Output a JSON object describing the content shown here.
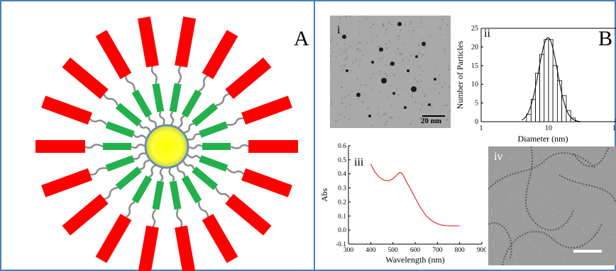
{
  "panel_a": {
    "label": "A"
  },
  "panel_b": {
    "label": "B",
    "subpanels": {
      "i": {
        "label": "i",
        "scale_bar": "20 nm"
      },
      "ii": {
        "label": "ii"
      },
      "iii": {
        "label": "iii"
      },
      "iv": {
        "label": "iv"
      }
    }
  },
  "colors": {
    "frame": "#4a7fb5",
    "ligand_red": "#ff0000",
    "linker_green": "#22b14c",
    "core_yellow": "#ffff33",
    "core_ring": "#6a8fb0",
    "spectrum_line": "#e03030"
  },
  "chart_data": [
    {
      "id": "ii",
      "type": "bar",
      "title": "",
      "xlabel": "Diameter (nm)",
      "ylabel": "Number of Particles",
      "x_scale": "log",
      "xlim": [
        1,
        100
      ],
      "ylim": [
        0,
        25
      ],
      "xticks": [
        "1",
        "10",
        "10"
      ],
      "yticks": [
        "0",
        "5",
        "10",
        "15",
        "20",
        "25"
      ],
      "bin_edges": [
        4.7,
        5.5,
        6.4,
        7.4,
        8.6,
        10.0,
        11.6,
        13.5,
        15.7,
        18.3,
        21.3,
        24.8
      ],
      "values": [
        2,
        6,
        13,
        18,
        22,
        22,
        15,
        11,
        7,
        3,
        1
      ],
      "fit_curve": {
        "type": "lognormal",
        "peak_x": 9.8,
        "peak_y": 22.5
      }
    },
    {
      "id": "iii",
      "type": "line",
      "title": "",
      "xlabel": "Wavelength (nm)",
      "ylabel": "Abs",
      "xlim": [
        300,
        900
      ],
      "ylim": [
        -0.1,
        0.6
      ],
      "xticks": [
        "300",
        "400",
        "500",
        "600",
        "700",
        "800",
        "900"
      ],
      "yticks": [
        "-0.1",
        "0.0",
        "0.1",
        "0.2",
        "0.3",
        "0.4",
        "0.5",
        "0.6"
      ],
      "series": [
        {
          "x": [
            400,
            420,
            440,
            460,
            480,
            500,
            510,
            520,
            530,
            540,
            550,
            560,
            580,
            600,
            620,
            650,
            680,
            700,
            720,
            750,
            780,
            800
          ],
          "y": [
            0.47,
            0.41,
            0.375,
            0.355,
            0.35,
            0.365,
            0.38,
            0.395,
            0.41,
            0.405,
            0.38,
            0.345,
            0.29,
            0.23,
            0.17,
            0.1,
            0.06,
            0.045,
            0.035,
            0.03,
            0.03,
            0.03
          ]
        }
      ]
    }
  ]
}
